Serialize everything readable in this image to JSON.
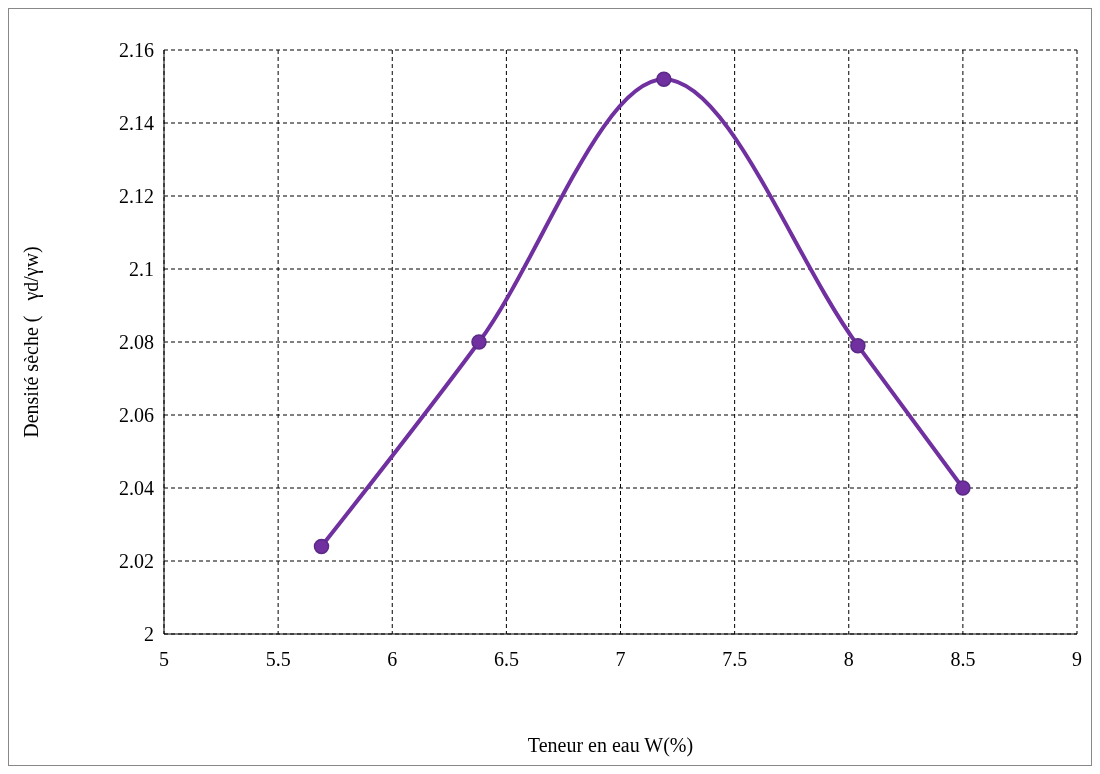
{
  "chart_data": {
    "type": "line",
    "xlabel": "Teneur en eau W(%)",
    "ylabel": "Densité sèche (   γd/γw)",
    "x": [
      5.69,
      6.38,
      7.19,
      8.04,
      8.5
    ],
    "series": [
      {
        "color": "#7030a0",
        "values": [
          2.024,
          2.08,
          2.152,
          2.079,
          2.04
        ]
      }
    ],
    "xlim": [
      5,
      9
    ],
    "xticks": [
      5,
      5.5,
      6,
      6.5,
      7,
      7.5,
      8,
      8.5,
      9
    ],
    "ylim": [
      2,
      2.16
    ],
    "yticks": [
      2,
      {
        "value": 2.02,
        "label": "2.02"
      },
      {
        "value": 2.04,
        "label": "2.04"
      },
      {
        "value": 2.06,
        "label": "2.06"
      },
      {
        "value": 2.08,
        "label": "2.08"
      },
      {
        "value": 2.1,
        "label": "2.1"
      },
      {
        "value": 2.12,
        "label": "2.12"
      },
      {
        "value": 2.14,
        "label": "2.14"
      },
      {
        "value": 2.16,
        "label": "2.16"
      }
    ],
    "grid": true,
    "marker": "circle",
    "line_style": "solid"
  }
}
